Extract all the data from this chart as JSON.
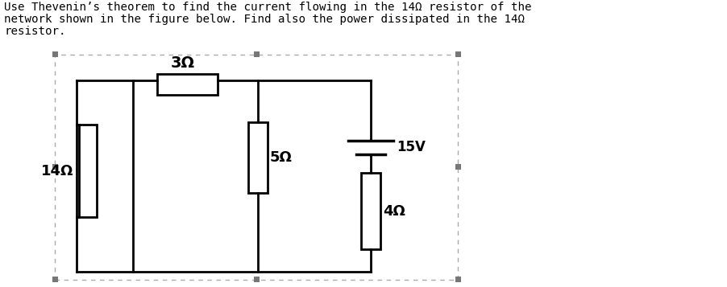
{
  "title_lines": [
    "Use Thevenin’s theorem to find the current flowing in the 14Ω resistor of the",
    "network shown in the figure below. Find also the power dissipated in the 14Ω",
    "resistor."
  ],
  "circuit_color": "#000000",
  "background": "#ffffff",
  "label_3ohm": "3Ω",
  "label_5ohm": "5Ω",
  "label_14ohm": "14Ω",
  "label_4ohm": "4Ω",
  "label_15v": "15V",
  "border_dash_color": "#aaaaaa",
  "corner_sq_color": "#777777",
  "mid_sq_color": "#777777"
}
